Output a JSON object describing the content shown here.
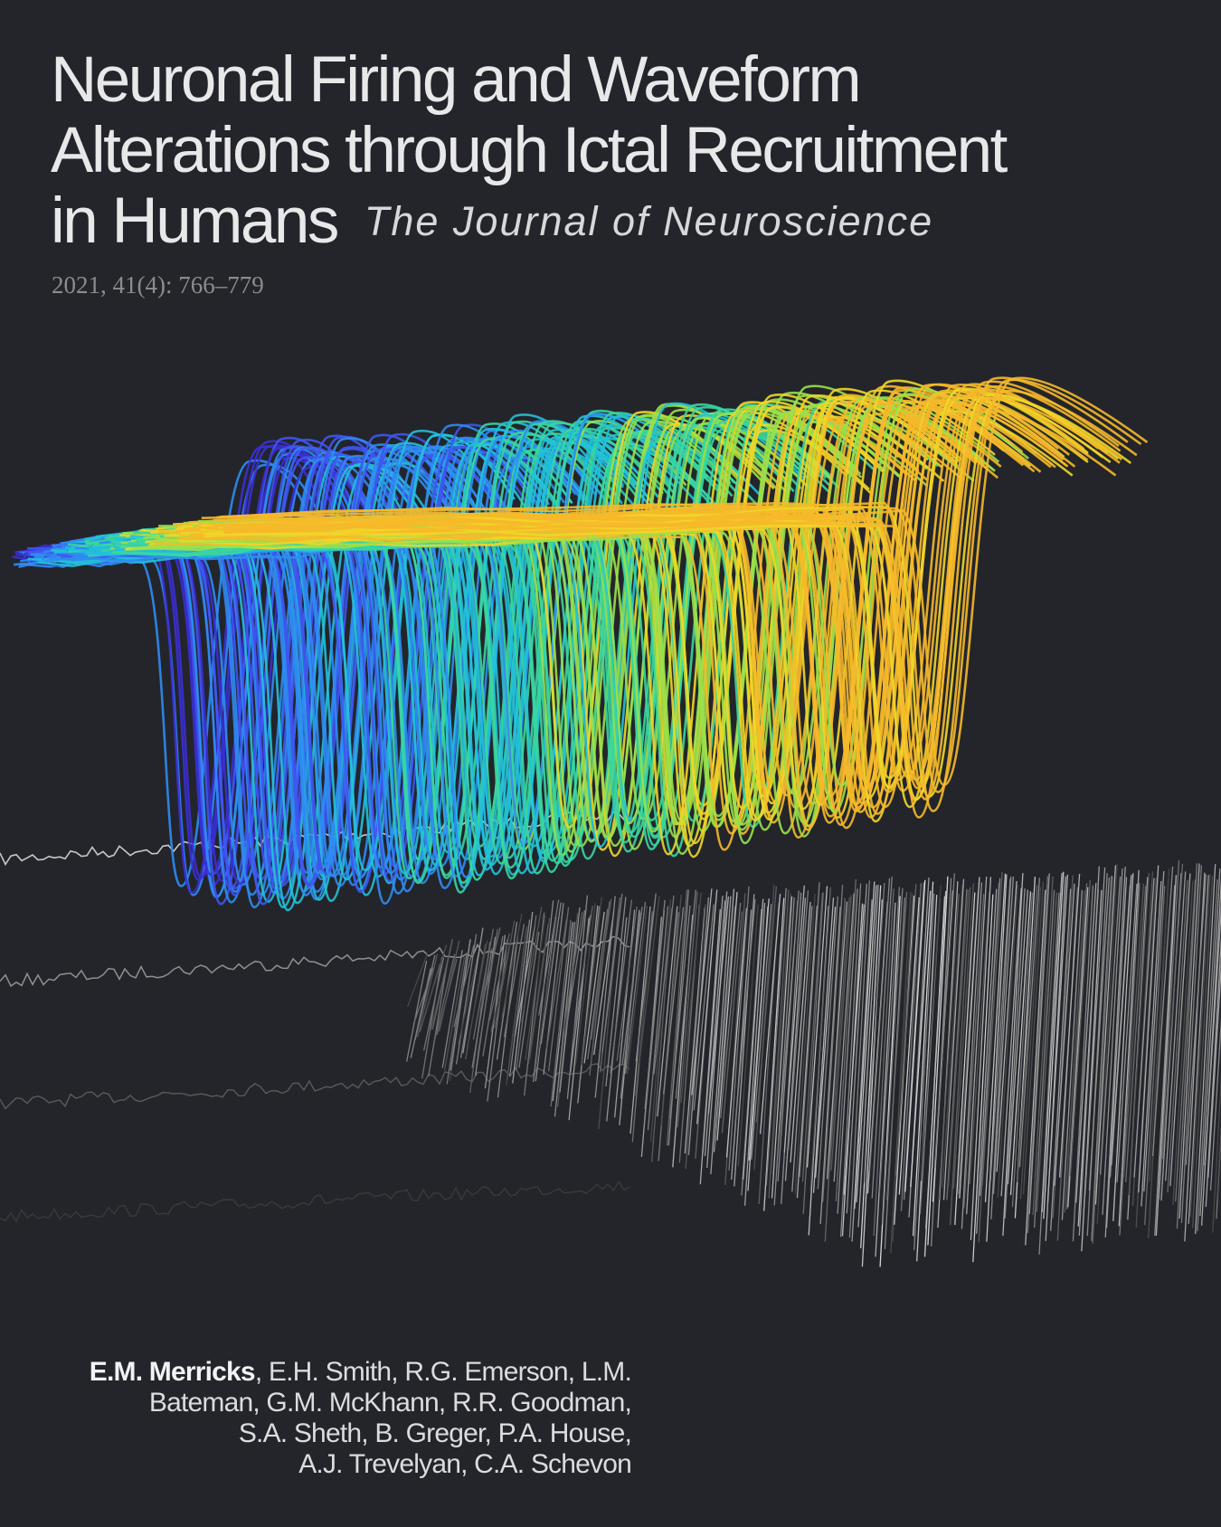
{
  "cover": {
    "title_lines": [
      "Neuronal Firing and Waveform",
      "Alterations through Ictal Recruitment",
      "in Humans"
    ],
    "journal": "The Journal of Neuroscience",
    "citation": "2021, 41(4): 766–779",
    "authors": {
      "lead": "E.M. Merricks",
      "line1_rest": ", E.H. Smith, R.G. Emerson, L.M.",
      "line2": "Bateman, G.M. McKhann, R.R. Goodman,",
      "line3": "S.A. Sheth, B. Greger, P.A. House,",
      "line4": "A.J. Trevelyan, C.A. Schevon"
    }
  },
  "colors": {
    "background": "#23252b",
    "title": "#e8e8e8",
    "citation": "#8c8c8c",
    "wave_palette": [
      "#3b2fd6",
      "#3f55f0",
      "#2f8cf2",
      "#22c1d8",
      "#3ad6a0",
      "#9ae04a",
      "#f0d628",
      "#f6b92a"
    ],
    "trace_colors": [
      "#c8c8c8",
      "#909090",
      "#5a5a5a",
      "#3a3a3a"
    ]
  },
  "artwork": {
    "description_icon": "spike-waveform-waterfall-illustration"
  }
}
